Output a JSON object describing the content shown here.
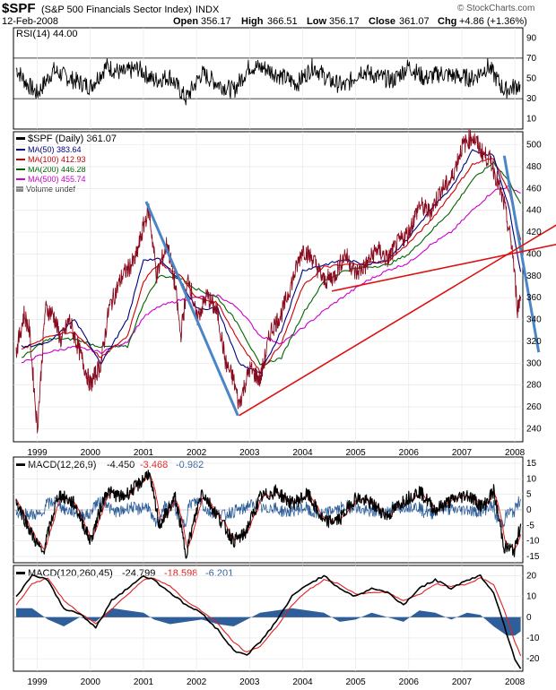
{
  "header": {
    "symbol": "$SPF",
    "name": "(S&P 500 Financials Sector Index)",
    "exchange": "INDX",
    "date": "12-Feb-2008",
    "open_label": "Open",
    "open": "356.17",
    "high_label": "High",
    "high": "366.51",
    "low_label": "Low",
    "low": "356.17",
    "close_label": "Close",
    "close": "361.07",
    "chg_label": "Chg",
    "chg": "+4.86 (+1.36%)",
    "watermark": "© StockCharts.com"
  },
  "colors": {
    "price": "#000000",
    "ma50": "#000080",
    "ma100": "#cc0000",
    "ma200": "#006400",
    "ma500": "#cc00cc",
    "trend_blue": "#4a86c6",
    "trend_red": "#dd1111",
    "hist": "#2f5f9a",
    "signal": "#e02020"
  },
  "chart_data": [
    {
      "type": "line",
      "title": "RSI(14) 44.00",
      "legend": [
        "RSI(14) 44.00"
      ],
      "y_ticks": [
        10,
        30,
        50,
        70,
        90
      ],
      "ylim": [
        0,
        100
      ],
      "reference_lines": [
        30,
        70
      ],
      "series": [
        {
          "name": "RSI(14)",
          "x": [
            1998.6,
            1998.8,
            1999.0,
            1999.3,
            1999.6,
            2000.0,
            2000.3,
            2000.6,
            2000.9,
            2001.2,
            2001.5,
            2001.8,
            2002.1,
            2002.4,
            2002.7,
            2003.0,
            2003.3,
            2003.6,
            2003.9,
            2004.2,
            2004.5,
            2004.8,
            2005.1,
            2005.4,
            2005.7,
            2006.0,
            2006.3,
            2006.6,
            2006.9,
            2007.2,
            2007.5,
            2007.8,
            2008.1
          ],
          "values": [
            60,
            45,
            35,
            58,
            50,
            42,
            62,
            55,
            60,
            48,
            52,
            30,
            55,
            45,
            38,
            62,
            60,
            52,
            45,
            62,
            48,
            42,
            58,
            52,
            48,
            62,
            50,
            55,
            52,
            50,
            62,
            38,
            44
          ]
        }
      ]
    },
    {
      "type": "line",
      "title": "$SPF (Daily) 361.07",
      "xlabel": "",
      "ylabel": "",
      "x_ticks": [
        "1999",
        "2000",
        "2001",
        "2002",
        "2003",
        "2004",
        "2005",
        "2006",
        "2007",
        "2008"
      ],
      "y_ticks": [
        240,
        260,
        280,
        300,
        320,
        340,
        360,
        380,
        400,
        420,
        440,
        460,
        480,
        500
      ],
      "ylim": [
        228,
        512
      ],
      "legend": [
        {
          "label": "$SPF (Daily) 361.07",
          "color_key": "price"
        },
        {
          "label": "MA(50) 383.64",
          "color_key": "ma50"
        },
        {
          "label": "MA(100) 412.93",
          "color_key": "ma100"
        },
        {
          "label": "MA(200) 446.28",
          "color_key": "ma200"
        },
        {
          "label": "MA(500) 455.74",
          "color_key": "ma500"
        },
        {
          "label": "Volume undef",
          "color_key": "price"
        }
      ],
      "series": [
        {
          "name": "$SPF",
          "x": [
            1998.6,
            1998.75,
            1998.85,
            1999.0,
            1999.15,
            1999.3,
            1999.45,
            1999.6,
            1999.8,
            2000.0,
            2000.2,
            2000.35,
            2000.6,
            2000.85,
            2001.0,
            2001.1,
            2001.25,
            2001.45,
            2001.6,
            2001.7,
            2001.85,
            2002.0,
            2002.2,
            2002.4,
            2002.55,
            2002.7,
            2002.8,
            2003.0,
            2003.2,
            2003.4,
            2003.6,
            2003.85,
            2004.0,
            2004.2,
            2004.4,
            2004.6,
            2004.8,
            2005.0,
            2005.2,
            2005.4,
            2005.6,
            2005.8,
            2006.0,
            2006.2,
            2006.4,
            2006.6,
            2006.8,
            2007.0,
            2007.2,
            2007.4,
            2007.55,
            2007.65,
            2007.8,
            2007.95,
            2008.05,
            2008.11
          ],
          "values": [
            310,
            345,
            330,
            240,
            350,
            345,
            320,
            340,
            310,
            280,
            300,
            350,
            380,
            395,
            425,
            442,
            380,
            410,
            370,
            325,
            380,
            340,
            362,
            345,
            300,
            285,
            262,
            295,
            285,
            330,
            345,
            382,
            405,
            395,
            375,
            380,
            400,
            382,
            390,
            405,
            395,
            410,
            420,
            445,
            438,
            458,
            468,
            498,
            508,
            492,
            485,
            470,
            445,
            405,
            350,
            361
          ]
        },
        {
          "name": "MA(50)",
          "x": [
            1998.7,
            1999.2,
            1999.7,
            2000.2,
            2000.7,
            2001.0,
            2001.3,
            2001.7,
            2002.0,
            2002.4,
            2002.8,
            2003.2,
            2003.6,
            2004.0,
            2004.4,
            2004.8,
            2005.2,
            2005.6,
            2006.0,
            2006.4,
            2006.8,
            2007.2,
            2007.6,
            2007.9,
            2008.11
          ],
          "values": [
            315,
            318,
            340,
            300,
            340,
            395,
            395,
            375,
            350,
            350,
            300,
            290,
            330,
            385,
            390,
            395,
            390,
            395,
            415,
            440,
            460,
            495,
            490,
            440,
            383.64
          ]
        },
        {
          "name": "MA(100)",
          "x": [
            1998.7,
            1999.2,
            1999.7,
            2000.2,
            2000.7,
            2001.0,
            2001.3,
            2001.7,
            2002.0,
            2002.4,
            2002.8,
            2003.2,
            2003.6,
            2004.0,
            2004.4,
            2004.8,
            2005.2,
            2005.6,
            2006.0,
            2006.4,
            2006.8,
            2007.2,
            2007.6,
            2007.9,
            2008.11
          ],
          "values": [
            312,
            325,
            328,
            305,
            325,
            375,
            392,
            380,
            360,
            355,
            320,
            292,
            318,
            370,
            388,
            390,
            392,
            393,
            410,
            430,
            455,
            482,
            488,
            455,
            412.93
          ]
        },
        {
          "name": "MA(200)",
          "x": [
            1998.7,
            1999.2,
            1999.7,
            2000.2,
            2000.7,
            2001.0,
            2001.3,
            2001.7,
            2002.0,
            2002.4,
            2002.8,
            2003.2,
            2003.6,
            2004.0,
            2004.4,
            2004.8,
            2005.2,
            2005.6,
            2006.0,
            2006.4,
            2006.8,
            2007.2,
            2007.6,
            2007.9,
            2008.11
          ],
          "values": [
            305,
            322,
            322,
            315,
            315,
            355,
            380,
            378,
            368,
            360,
            335,
            298,
            305,
            345,
            375,
            385,
            388,
            390,
            400,
            420,
            440,
            468,
            484,
            466,
            446.28
          ]
        },
        {
          "name": "MA(500)",
          "x": [
            1998.7,
            1999.2,
            1999.7,
            2000.2,
            2000.7,
            2001.0,
            2001.3,
            2001.7,
            2002.0,
            2002.4,
            2002.8,
            2003.2,
            2003.6,
            2004.0,
            2004.4,
            2004.8,
            2005.2,
            2005.6,
            2006.0,
            2006.4,
            2006.8,
            2007.2,
            2007.6,
            2007.9,
            2008.11
          ],
          "values": [
            300,
            310,
            315,
            310,
            320,
            342,
            352,
            358,
            360,
            362,
            350,
            325,
            318,
            332,
            348,
            362,
            375,
            385,
            392,
            408,
            420,
            440,
            458,
            462,
            455.74
          ]
        }
      ],
      "trendlines": [
        {
          "color_key": "trend_blue",
          "points": [
            [
              2001.05,
              448
            ],
            [
              2002.78,
              252
            ]
          ]
        },
        {
          "color_key": "trend_blue",
          "points": [
            [
              2007.8,
              490
            ],
            [
              2008.45,
              310
            ]
          ]
        },
        {
          "color_key": "trend_red",
          "points": [
            [
              2002.8,
              252
            ],
            [
              2008.9,
              430
            ]
          ]
        },
        {
          "color_key": "trend_red",
          "points": [
            [
              2004.55,
              366
            ],
            [
              2008.9,
              410
            ]
          ]
        }
      ]
    },
    {
      "type": "line",
      "title": "MACD(12,26,9)",
      "legend": [
        {
          "label": "MACD(12,26,9)",
          "value": "-4.450",
          "color_key": "price"
        },
        {
          "label": "",
          "value": "-3.468",
          "color_key": "signal"
        },
        {
          "label": "",
          "value": "-0.982",
          "color_key": "hist"
        }
      ],
      "y_ticks": [
        -15,
        -10,
        -5,
        0,
        5,
        10,
        15
      ],
      "ylim": [
        -17,
        17
      ],
      "series": [
        {
          "name": "MACD",
          "x": [
            1998.6,
            1998.9,
            1999.1,
            1999.4,
            1999.7,
            2000.0,
            2000.3,
            2000.6,
            2000.9,
            2001.1,
            2001.3,
            2001.6,
            2001.8,
            2002.1,
            2002.4,
            2002.7,
            2002.9,
            2003.2,
            2003.5,
            2003.8,
            2004.1,
            2004.4,
            2004.7,
            2005.0,
            2005.3,
            2005.6,
            2005.9,
            2006.2,
            2006.5,
            2006.8,
            2007.1,
            2007.4,
            2007.6,
            2007.8,
            2008.0,
            2008.11
          ],
          "values": [
            3,
            -8,
            -14,
            5,
            2,
            -10,
            6,
            4,
            8,
            12,
            -5,
            4,
            -14,
            6,
            -2,
            -10,
            -8,
            4,
            6,
            2,
            5,
            -4,
            -3,
            4,
            2,
            -2,
            3,
            6,
            0,
            3,
            5,
            1,
            6,
            -12,
            -13,
            -4.45
          ]
        }
      ]
    },
    {
      "type": "line",
      "title": "MACD(120,260,45)",
      "legend": [
        {
          "label": "MACD(120,260,45)",
          "value": "-24.799",
          "color_key": "price"
        },
        {
          "label": "",
          "value": "-18.598",
          "color_key": "signal"
        },
        {
          "label": "",
          "value": "-6.201",
          "color_key": "hist"
        }
      ],
      "y_ticks": [
        -20,
        -10,
        0,
        10,
        20
      ],
      "ylim": [
        -26,
        25
      ],
      "x_ticks": [
        "1999",
        "2000",
        "2001",
        "2002",
        "2003",
        "2004",
        "2005",
        "2006",
        "2007",
        "2008"
      ],
      "series": [
        {
          "name": "MACD",
          "x": [
            1998.6,
            1998.9,
            1999.2,
            1999.5,
            1999.8,
            2000.1,
            2000.4,
            2000.7,
            2001.0,
            2001.2,
            2001.5,
            2001.8,
            2002.1,
            2002.4,
            2002.7,
            2002.95,
            2003.2,
            2003.5,
            2003.8,
            2004.1,
            2004.4,
            2004.7,
            2005.0,
            2005.3,
            2005.6,
            2005.9,
            2006.2,
            2006.5,
            2006.8,
            2007.1,
            2007.35,
            2007.6,
            2007.85,
            2008.0,
            2008.11
          ],
          "values": [
            10,
            20,
            18,
            4,
            2,
            -5,
            8,
            14,
            20,
            18,
            12,
            6,
            2,
            -6,
            -16,
            -18,
            -12,
            -2,
            10,
            16,
            20,
            14,
            10,
            14,
            12,
            6,
            14,
            18,
            14,
            18,
            20,
            12,
            -8,
            -20,
            -24.8
          ]
        },
        {
          "name": "Signal",
          "x": [
            1998.6,
            1998.9,
            1999.2,
            1999.5,
            1999.8,
            2000.1,
            2000.4,
            2000.7,
            2001.0,
            2001.2,
            2001.5,
            2001.8,
            2002.1,
            2002.4,
            2002.7,
            2002.95,
            2003.2,
            2003.5,
            2003.8,
            2004.1,
            2004.4,
            2004.7,
            2005.0,
            2005.3,
            2005.6,
            2005.9,
            2006.2,
            2006.5,
            2006.8,
            2007.1,
            2007.35,
            2007.6,
            2007.85,
            2008.0,
            2008.11
          ],
          "values": [
            6,
            16,
            19,
            8,
            2,
            -3,
            4,
            11,
            18,
            19,
            15,
            8,
            3,
            -3,
            -12,
            -17,
            -14,
            -5,
            6,
            13,
            18,
            16,
            11,
            12,
            12,
            8,
            11,
            16,
            15,
            16,
            19,
            16,
            0,
            -12,
            -18.6
          ]
        }
      ]
    }
  ]
}
